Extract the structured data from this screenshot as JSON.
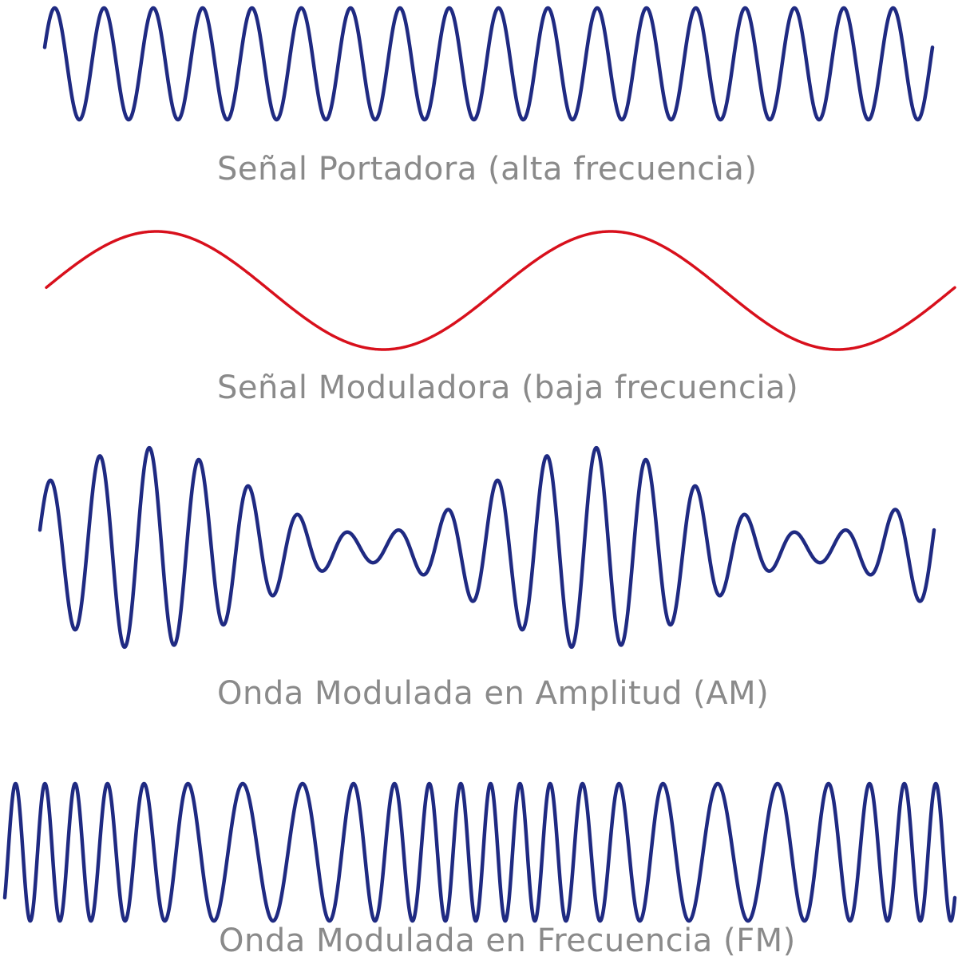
{
  "colors": {
    "background": "#ffffff",
    "carrier": "#1f2a82",
    "modulating": "#d8101c",
    "am": "#1f2a82",
    "fm": "#1f2a82",
    "caption": "#8a8a8a"
  },
  "waves": {
    "carrier": {
      "caption": "Señal Portadora (alta frecuencia)",
      "cycles": 18
    },
    "modulating": {
      "caption": "Señal Moduladora (baja frecuencia)",
      "cycles": 2
    },
    "am": {
      "caption": "Onda Modulada en Amplitud (AM)",
      "carrier_cycles": 18,
      "message_cycles": 2,
      "modulation_index": 0.75
    },
    "fm": {
      "caption": "Onda Modulada en Frecuencia (FM)",
      "carrier_cycles": 24,
      "message_cycles": 2,
      "frequency_deviation": 0.35
    }
  }
}
